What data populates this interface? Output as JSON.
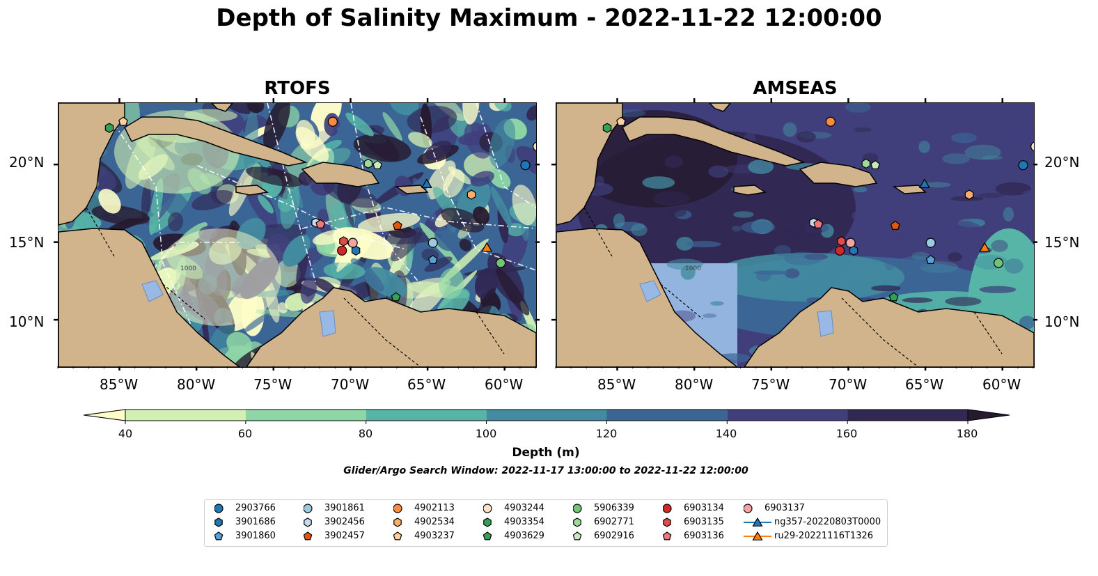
{
  "title": "Depth of Salinity Maximum - 2022-11-22 12:00:00",
  "panels": [
    {
      "title": "RTOFS"
    },
    {
      "title": "AMSEAS"
    }
  ],
  "axes": {
    "lon_ticks": [
      "85°W",
      "80°W",
      "75°W",
      "70°W",
      "65°W",
      "60°W"
    ],
    "lat_ticks": [
      "20°N",
      "15°N",
      "10°N"
    ],
    "lon_range": [
      -89,
      -58
    ],
    "lat_range": [
      7,
      24
    ]
  },
  "colorbar": {
    "label": "Depth (m)",
    "ticks": [
      "40",
      "60",
      "80",
      "100",
      "120",
      "140",
      "160",
      "180"
    ],
    "range": [
      40,
      180
    ],
    "extend": "both",
    "colors": [
      "#fdfdc8",
      "#d2f0b4",
      "#8ed6a6",
      "#57b5a8",
      "#438ba0",
      "#3b6595",
      "#403f7c",
      "#312854",
      "#261a30"
    ]
  },
  "search_window": "Glider/Argo Search Window: 2022-11-17 13:00:00 to 2022-11-22 12:00:00",
  "legend": [
    {
      "id": "2903766",
      "marker": "circle",
      "color": "#1f77b4",
      "lon": -58.7,
      "lat": 20.0
    },
    {
      "id": "3901686",
      "marker": "hexagon",
      "color": "#1f77b4",
      "lon": -69.7,
      "lat": 14.5
    },
    {
      "id": "3901860",
      "marker": "pentagon",
      "color": "#5aa0d8",
      "lon": -64.7,
      "lat": 13.9
    },
    {
      "id": "3901861",
      "marker": "circle",
      "color": "#9ecae1",
      "lon": -64.7,
      "lat": 15.0
    },
    {
      "id": "3902456",
      "marker": "hexagon",
      "color": "#c6dbef",
      "lon": -72.3,
      "lat": 16.3
    },
    {
      "id": "3902457",
      "marker": "pentagon",
      "color": "#e6550d",
      "lon": -67.0,
      "lat": 16.1
    },
    {
      "id": "4902113",
      "marker": "circle",
      "color": "#fd8d3c",
      "lon": -71.2,
      "lat": 22.8
    },
    {
      "id": "4902534",
      "marker": "hexagon",
      "color": "#fdae6b",
      "lon": -62.2,
      "lat": 18.1
    },
    {
      "id": "4903237",
      "marker": "pentagon",
      "color": "#fdd0a2",
      "lon": -84.8,
      "lat": 22.8
    },
    {
      "id": "4903244",
      "marker": "circle",
      "color": "#fde0c5",
      "lon": -57.9,
      "lat": 21.2
    },
    {
      "id": "4903354",
      "marker": "hexagon",
      "color": "#31a354",
      "lon": -85.7,
      "lat": 22.4
    },
    {
      "id": "4903629",
      "marker": "pentagon",
      "color": "#31a354",
      "lon": -67.1,
      "lat": 11.5
    },
    {
      "id": "5906339",
      "marker": "circle",
      "color": "#74c476",
      "lon": -60.3,
      "lat": 13.7
    },
    {
      "id": "6902771",
      "marker": "hexagon",
      "color": "#a1d99b",
      "lon": -68.9,
      "lat": 20.1
    },
    {
      "id": "6902916",
      "marker": "pentagon",
      "color": "#c7e9c0",
      "lon": -68.3,
      "lat": 20.0
    },
    {
      "id": "6903134",
      "marker": "circle",
      "color": "#d62728",
      "lon": -70.6,
      "lat": 14.5
    },
    {
      "id": "6903135",
      "marker": "hexagon",
      "color": "#e34a4a",
      "lon": -70.5,
      "lat": 15.1
    },
    {
      "id": "6903136",
      "marker": "pentagon",
      "color": "#f07878",
      "lon": -72.0,
      "lat": 16.2
    },
    {
      "id": "6903137",
      "marker": "circle",
      "color": "#f4a3a3",
      "lon": -69.9,
      "lat": 15.0
    },
    {
      "id": "ng357-20220803T0000",
      "marker": "triangle-line",
      "color": "#1f77b4",
      "lon": -65.1,
      "lat": 18.8
    },
    {
      "id": "ru29-20221116T1326",
      "marker": "triangle-line",
      "color": "#ff7f0e",
      "lon": -61.2,
      "lat": 14.7
    }
  ],
  "contour_label": "1000"
}
